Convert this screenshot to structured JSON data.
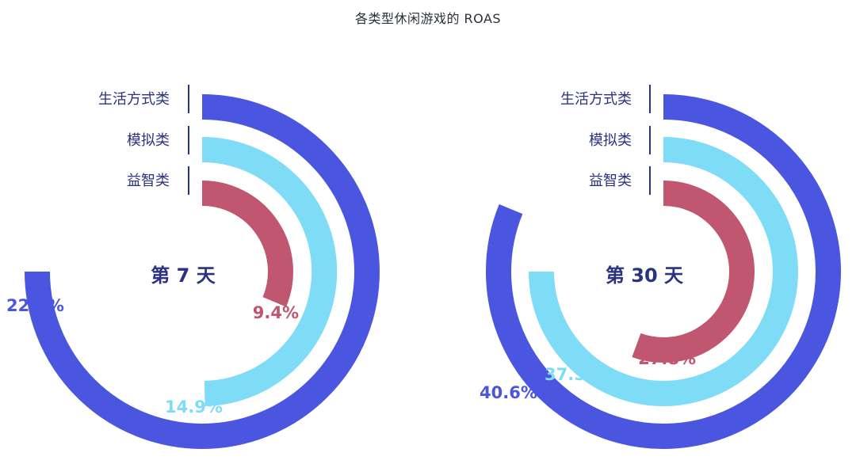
{
  "title": "各类型休闲游戏的 ROAS",
  "colors": {
    "生活方式类": "#4a55e0",
    "模拟类": "#7fdcf6",
    "益智类": "#c05670"
  },
  "chart_data": [
    {
      "type": "radial-bar",
      "center_label": "第 7 天",
      "max": 30,
      "series": [
        {
          "name": "生活方式类",
          "value": 22.5,
          "value_label": "22.5%"
        },
        {
          "name": "模拟类",
          "value": 14.9,
          "value_label": "14.9%"
        },
        {
          "name": "益智类",
          "value": 9.4,
          "value_label": "9.4%"
        }
      ]
    },
    {
      "type": "radial-bar",
      "center_label": "第 30 天",
      "max": 50,
      "series": [
        {
          "name": "生活方式类",
          "value": 40.6,
          "value_label": "40.6%"
        },
        {
          "name": "模拟类",
          "value": 37.5,
          "value_label": "37.5%"
        },
        {
          "name": "益智类",
          "value": 27.8,
          "value_label": "27.8%"
        }
      ]
    }
  ]
}
